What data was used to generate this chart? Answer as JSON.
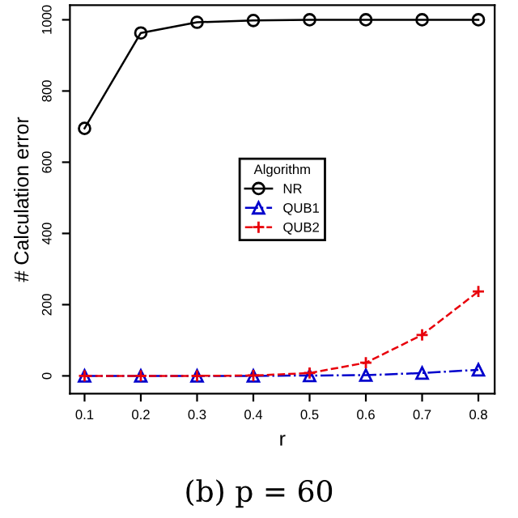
{
  "chart_data": {
    "type": "line",
    "xlabel": "r",
    "ylabel": "# Calculation error",
    "legend_title": "Algorithm",
    "legend": "center",
    "x": [
      0.1,
      0.2,
      0.3,
      0.4,
      0.5,
      0.6,
      0.7,
      0.8
    ],
    "xlim": [
      0.074,
      0.829
    ],
    "xticks": [
      0.1,
      0.2,
      0.3,
      0.4,
      0.5,
      0.6,
      0.7,
      0.8
    ],
    "ylim": [
      -50,
      1041
    ],
    "yticks": [
      0,
      200,
      400,
      600,
      800,
      1000
    ],
    "series": [
      {
        "name": "NR",
        "color": "#000000",
        "marker": "circle",
        "line_style": "solid",
        "values": [
          695,
          963,
          993,
          998,
          1000,
          1000,
          1000,
          1000
        ]
      },
      {
        "name": "QUB1",
        "color": "#0000cc",
        "marker": "triangle",
        "line_style": "dashdot",
        "values": [
          0,
          0,
          0,
          0,
          1,
          2,
          8,
          17
        ]
      },
      {
        "name": "QUB2",
        "color": "#e8000b",
        "marker": "cross",
        "line_style": "dashed",
        "values": [
          0,
          0,
          0,
          1,
          8,
          37,
          115,
          237
        ]
      }
    ],
    "annotations": [
      "(b) p = 60"
    ]
  }
}
